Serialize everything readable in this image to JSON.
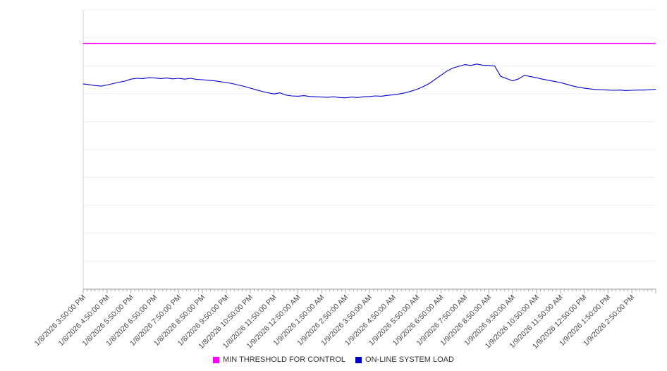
{
  "legend": {
    "items": [
      {
        "label": "MIN THRESHOLD FOR CONTROL",
        "color": "#ff00ff"
      },
      {
        "label": "ON-LINE SYSTEM LOAD",
        "color": "#0000cd"
      }
    ]
  },
  "chart_data": {
    "type": "line",
    "title": "",
    "xlabel": "",
    "ylabel": "",
    "y_axis_labels_visible": false,
    "ylim": [
      0,
      100
    ],
    "grid": "horizontal",
    "legend_position": "bottom-center",
    "x_tick_labels": [
      "1/8/2026 3:50:00 PM",
      "1/8/2026 4:50:00 PM",
      "1/8/2026 5:50:00 PM",
      "1/8/2026 6:50:00 PM",
      "1/8/2026 7:50:00 PM",
      "1/8/2026 8:50:00 PM",
      "1/8/2026 9:50:00 PM",
      "1/8/2026 10:50:00 PM",
      "1/8/2026 11:50:00 PM",
      "1/9/2026 12:50:00 AM",
      "1/9/2026 1:50:00 AM",
      "1/9/2026 2:50:00 AM",
      "1/9/2026 3:50:00 AM",
      "1/9/2026 4:50:00 AM",
      "1/9/2026 5:50:00 AM",
      "1/9/2026 6:50:00 AM",
      "1/9/2026 7:50:00 AM",
      "1/9/2026 8:50:00 AM",
      "1/9/2026 9:50:00 AM",
      "1/9/2026 10:50:00 AM",
      "1/9/2026 11:50:00 AM",
      "1/9/2026 12:50:00 PM",
      "1/9/2026 1:50:00 PM",
      "1/9/2026 2:50:00 PM"
    ],
    "series": [
      {
        "name": "MIN THRESHOLD FOR CONTROL",
        "color": "#ff00ff",
        "style": "horizontal-threshold",
        "value": 88
      },
      {
        "name": "ON-LINE SYSTEM LOAD",
        "color": "#0000cd",
        "points_per_hour": 4,
        "values": [
          73.5,
          73.2,
          72.9,
          72.7,
          73.1,
          73.6,
          74.1,
          74.5,
          75.2,
          75.5,
          75.4,
          75.7,
          75.6,
          75.4,
          75.6,
          75.3,
          75.5,
          75.2,
          75.5,
          75.1,
          75.0,
          74.8,
          74.6,
          74.3,
          74.0,
          73.6,
          73.1,
          72.6,
          72.0,
          71.4,
          70.8,
          70.3,
          69.9,
          70.3,
          69.5,
          69.2,
          69.1,
          69.3,
          69.0,
          68.9,
          68.8,
          68.7,
          68.9,
          68.6,
          68.5,
          68.8,
          68.6,
          68.9,
          69.0,
          69.2,
          69.1,
          69.4,
          69.6,
          69.9,
          70.3,
          70.9,
          71.6,
          72.5,
          73.6,
          75.1,
          76.6,
          78.1,
          79.2,
          79.8,
          80.4,
          80.1,
          80.6,
          80.2,
          80.1,
          79.9,
          76.2,
          75.4,
          74.6,
          75.3,
          76.6,
          76.1,
          75.7,
          75.2,
          74.8,
          74.4,
          74.0,
          73.4,
          72.8,
          72.3,
          72.0,
          71.7,
          71.5,
          71.4,
          71.3,
          71.2,
          71.3,
          71.1,
          71.2,
          71.3,
          71.3,
          71.4,
          71.6
        ]
      }
    ]
  }
}
